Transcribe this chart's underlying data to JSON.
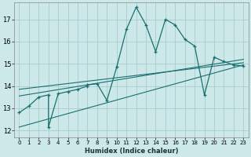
{
  "bg_color": "#cce8e8",
  "grid_color": "#aacccc",
  "line_color": "#1a7070",
  "xlabel": "Humidex (Indice chaleur)",
  "xlim": [
    -0.5,
    23.5
  ],
  "ylim": [
    11.7,
    17.75
  ],
  "yticks": [
    12,
    13,
    14,
    15,
    16,
    17
  ],
  "xticks": [
    0,
    1,
    2,
    3,
    4,
    5,
    6,
    7,
    8,
    9,
    10,
    11,
    12,
    13,
    14,
    15,
    16,
    17,
    18,
    19,
    20,
    21,
    22,
    23
  ],
  "main_x": [
    0,
    1,
    2,
    3,
    3,
    4,
    5,
    6,
    7,
    7,
    8,
    9,
    10,
    11,
    12,
    13,
    14,
    15,
    16,
    17,
    18,
    19,
    20,
    21,
    22,
    23
  ],
  "main_y": [
    12.8,
    13.1,
    13.5,
    13.6,
    12.15,
    13.65,
    13.75,
    13.85,
    14.0,
    14.05,
    14.1,
    13.35,
    14.85,
    16.55,
    17.55,
    16.75,
    15.55,
    17.0,
    16.75,
    16.1,
    15.8,
    13.6,
    15.3,
    15.1,
    14.95,
    14.9
  ],
  "line1_x": [
    0,
    23
  ],
  "line1_y": [
    13.55,
    15.2
  ],
  "line2_x": [
    0,
    23
  ],
  "line2_y": [
    13.85,
    15.05
  ],
  "line3_x": [
    0,
    23
  ],
  "line3_y": [
    12.15,
    14.95
  ]
}
